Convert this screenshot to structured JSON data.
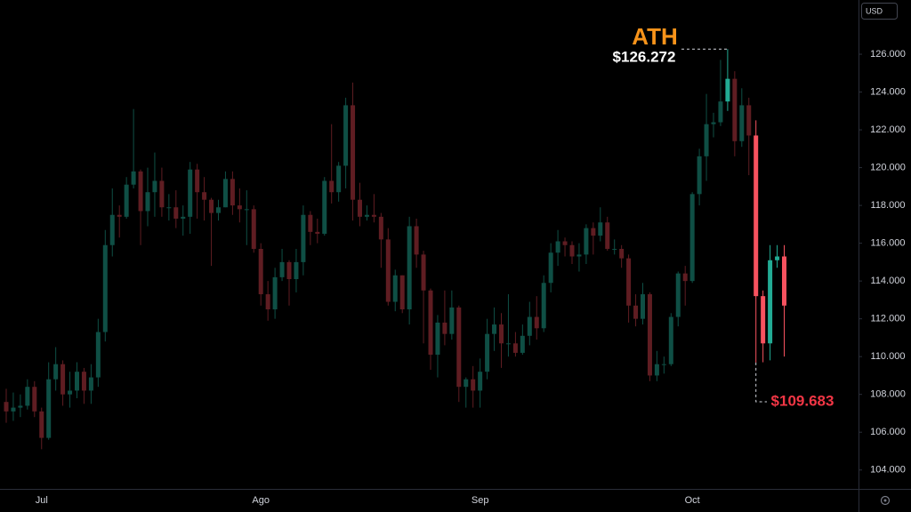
{
  "chart_data": {
    "type": "candlestick",
    "currency": "USD",
    "categories": [
      null,
      null,
      null,
      null,
      null,
      "Jul",
      null,
      null,
      null,
      null,
      null,
      null,
      null,
      null,
      null,
      null,
      null,
      null,
      null,
      null,
      null,
      null,
      null,
      null,
      null,
      null,
      null,
      null,
      null,
      null,
      null,
      null,
      null,
      null,
      null,
      null,
      "Ago",
      null,
      null,
      null,
      null,
      null,
      null,
      null,
      null,
      null,
      null,
      null,
      null,
      null,
      null,
      null,
      null,
      null,
      null,
      null,
      null,
      null,
      null,
      null,
      null,
      null,
      null,
      null,
      null,
      null,
      null,
      "Sep",
      null,
      null,
      null,
      null,
      null,
      null,
      null,
      null,
      null,
      null,
      null,
      null,
      null,
      null,
      null,
      null,
      null,
      null,
      null,
      null,
      null,
      null,
      null,
      null,
      null,
      null,
      null,
      null,
      null,
      "Oct",
      null,
      null,
      null,
      null,
      null,
      null,
      null,
      null,
      null,
      null,
      null,
      null,
      null
    ],
    "series": [
      {
        "open": [
          107600,
          107100,
          107300,
          107400,
          108400,
          107100,
          105700,
          108800,
          109600,
          108000,
          108200,
          109200,
          108200,
          108900,
          111300,
          115900,
          117500,
          117400,
          119100,
          119800,
          117700,
          118700,
          119300,
          117900,
          117900,
          117300,
          117400,
          119900,
          118700,
          118300,
          117600,
          117900,
          119400,
          118000,
          117800,
          117800,
          115700,
          113300,
          112500,
          114200,
          115000,
          114100,
          115000,
          117500,
          116600,
          116500,
          119300,
          118700,
          120100,
          123300,
          118300,
          117400,
          117500,
          117400,
          116200,
          112900,
          114300,
          112500,
          116900,
          115400,
          113500,
          110100,
          111800,
          111200,
          112600,
          108400,
          108800,
          108200,
          109200,
          111200,
          111700,
          110700,
          110700,
          110200,
          111100,
          112100,
          111500,
          113900,
          115500,
          116100,
          115900,
          115300,
          115400,
          116800,
          116400,
          117100,
          115700,
          115700,
          115200,
          112700,
          112000,
          113300,
          109000,
          109600,
          109600,
          112100,
          114400,
          114000,
          118600,
          120600,
          122300,
          122400,
          123500,
          124700,
          121400,
          123300,
          121700,
          113200,
          110700,
          115100,
          115300
        ],
        "high": [
          108300,
          108100,
          108000,
          108800,
          108700,
          107300,
          109700,
          110500,
          109800,
          109200,
          109700,
          109400,
          109600,
          112000,
          116700,
          118900,
          118000,
          119500,
          123100,
          119900,
          120000,
          120800,
          120000,
          118600,
          118800,
          118000,
          120300,
          120200,
          119500,
          118400,
          118300,
          119800,
          119800,
          118900,
          118800,
          118000,
          116000,
          114000,
          114700,
          115700,
          115100,
          115700,
          118000,
          117700,
          117300,
          119500,
          122300,
          120300,
          123700,
          124500,
          119200,
          118000,
          118600,
          117600,
          116800,
          114600,
          114300,
          117400,
          117300,
          115600,
          113600,
          112200,
          113500,
          113500,
          112700,
          108900,
          109500,
          109900,
          112000,
          112600,
          112300,
          113300,
          111300,
          111700,
          112900,
          113200,
          114300,
          116000,
          116700,
          116300,
          116100,
          116000,
          117000,
          117100,
          117900,
          117400,
          116200,
          115900,
          115400,
          113300,
          113900,
          113400,
          110300,
          110000,
          112300,
          114500,
          114800,
          118700,
          121000,
          123900,
          122900,
          125700,
          126272,
          125100,
          124200,
          123700,
          122500,
          113500,
          115900,
          115900,
          115900
        ],
        "low": [
          106500,
          106600,
          106800,
          107200,
          106800,
          105100,
          105600,
          108200,
          107400,
          107300,
          107800,
          107500,
          107500,
          108400,
          110800,
          115300,
          116300,
          117300,
          118900,
          115900,
          116900,
          117400,
          117400,
          117200,
          116800,
          116400,
          116500,
          117300,
          117200,
          114800,
          117200,
          117900,
          117500,
          117100,
          115900,
          115500,
          112700,
          111900,
          112000,
          114000,
          112700,
          113400,
          114300,
          115900,
          116000,
          116400,
          118100,
          118200,
          118900,
          117200,
          116900,
          117200,
          117100,
          114700,
          112700,
          112400,
          112300,
          111700,
          114700,
          110700,
          109300,
          108900,
          110600,
          110900,
          107600,
          107300,
          107300,
          107300,
          108800,
          110300,
          109400,
          110000,
          110000,
          110100,
          110600,
          110900,
          111300,
          113400,
          114800,
          115300,
          114900,
          114500,
          114900,
          115400,
          116100,
          115600,
          115400,
          114700,
          111800,
          111600,
          111700,
          108700,
          108700,
          109100,
          109500,
          111600,
          112700,
          113900,
          118000,
          119300,
          121600,
          122200,
          123000,
          120600,
          121100,
          119600,
          109683,
          109700,
          109800,
          114700,
          110000
        ],
        "close": [
          107100,
          107300,
          107400,
          108400,
          107100,
          105700,
          108800,
          109600,
          108000,
          108200,
          109200,
          108200,
          108900,
          111300,
          115900,
          117500,
          117400,
          119100,
          119800,
          117700,
          118700,
          119300,
          117900,
          117900,
          117300,
          117400,
          119900,
          118700,
          118300,
          117600,
          117900,
          119400,
          118000,
          117800,
          117800,
          115700,
          113300,
          112500,
          114200,
          115000,
          114100,
          115000,
          117500,
          116600,
          116500,
          119300,
          118700,
          120100,
          123300,
          118300,
          117400,
          117500,
          117400,
          116200,
          112900,
          114300,
          112500,
          116900,
          115400,
          113500,
          110100,
          111800,
          111200,
          112600,
          108400,
          108800,
          108200,
          109200,
          111200,
          111700,
          110700,
          110700,
          110200,
          111100,
          112100,
          111500,
          113900,
          115500,
          116100,
          115900,
          115300,
          115400,
          116800,
          116400,
          117100,
          115700,
          115700,
          115200,
          112700,
          112000,
          113300,
          109000,
          109600,
          109600,
          112100,
          114400,
          114000,
          118600,
          120600,
          122300,
          122400,
          123500,
          124700,
          121400,
          123300,
          121700,
          113200,
          110700,
          115100,
          115300,
          112700
        ],
        "colors": [
          "#5f1d22",
          "#0f4f45",
          "#0f4f45",
          "#0f4f45",
          "#5f1d22",
          "#5f1d22",
          "#0f4f45",
          "#0f4f45",
          "#5f1d22",
          "#0f4f45",
          "#0f4f45",
          "#5f1d22",
          "#0f4f45",
          "#0f4f45",
          "#0f4f45",
          "#0f4f45",
          "#5f1d22",
          "#0f4f45",
          "#0f4f45",
          "#5f1d22",
          "#0f4f45",
          "#0f4f45",
          "#5f1d22",
          "#0f4f45",
          "#5f1d22",
          "#0f4f45",
          "#0f4f45",
          "#5f1d22",
          "#5f1d22",
          "#5f1d22",
          "#0f4f45",
          "#0f4f45",
          "#5f1d22",
          "#5f1d22",
          "#0f4f45",
          "#5f1d22",
          "#5f1d22",
          "#5f1d22",
          "#0f4f45",
          "#0f4f45",
          "#5f1d22",
          "#0f4f45",
          "#0f4f45",
          "#5f1d22",
          "#5f1d22",
          "#0f4f45",
          "#5f1d22",
          "#0f4f45",
          "#0f4f45",
          "#5f1d22",
          "#5f1d22",
          "#0f4f45",
          "#5f1d22",
          "#5f1d22",
          "#5f1d22",
          "#0f4f45",
          "#5f1d22",
          "#0f4f45",
          "#5f1d22",
          "#5f1d22",
          "#5f1d22",
          "#0f4f45",
          "#5f1d22",
          "#0f4f45",
          "#5f1d22",
          "#0f4f45",
          "#5f1d22",
          "#0f4f45",
          "#0f4f45",
          "#0f4f45",
          "#5f1d22",
          "#0f4f45",
          "#5f1d22",
          "#0f4f45",
          "#0f4f45",
          "#5f1d22",
          "#0f4f45",
          "#0f4f45",
          "#0f4f45",
          "#5f1d22",
          "#5f1d22",
          "#0f4f45",
          "#0f4f45",
          "#5f1d22",
          "#0f4f45",
          "#5f1d22",
          "#0f4f45",
          "#5f1d22",
          "#5f1d22",
          "#5f1d22",
          "#0f4f45",
          "#5f1d22",
          "#0f4f45",
          "#0f4f45",
          "#0f4f45",
          "#0f4f45",
          "#5f1d22",
          "#0f4f45",
          "#0f4f45",
          "#0f4f45",
          "#0f4f45",
          "#0f4f45",
          "#22ab94",
          "#5f1d22",
          "#0f4f45",
          "#5f1d22",
          "#f7525f",
          "#f7525f",
          "#22ab94",
          "#22ab94",
          "#f7525f"
        ]
      }
    ],
    "ylim": [
      103000,
      128870
    ],
    "yticks": [
      {
        "value": 104000,
        "label": "104.000"
      },
      {
        "value": 106000,
        "label": "106.000"
      },
      {
        "value": 108000,
        "label": "108.000"
      },
      {
        "value": 110000,
        "label": "110.000"
      },
      {
        "value": 112000,
        "label": "112.000"
      },
      {
        "value": 114000,
        "label": "114.000"
      },
      {
        "value": 116000,
        "label": "116.000"
      },
      {
        "value": 118000,
        "label": "118.000"
      },
      {
        "value": 120000,
        "label": "120.000"
      },
      {
        "value": 122000,
        "label": "122.000"
      },
      {
        "value": 124000,
        "label": "124.000"
      },
      {
        "value": 126000,
        "label": "126.000"
      }
    ],
    "grid": false,
    "annotations": {
      "ath": {
        "text": "ATH",
        "color": "#f7931a"
      },
      "high": {
        "value": 126272,
        "label": "$126.272",
        "color": "#ffffff"
      },
      "low": {
        "value": 109683,
        "label": "$109.683",
        "color": "#f23645"
      }
    }
  }
}
